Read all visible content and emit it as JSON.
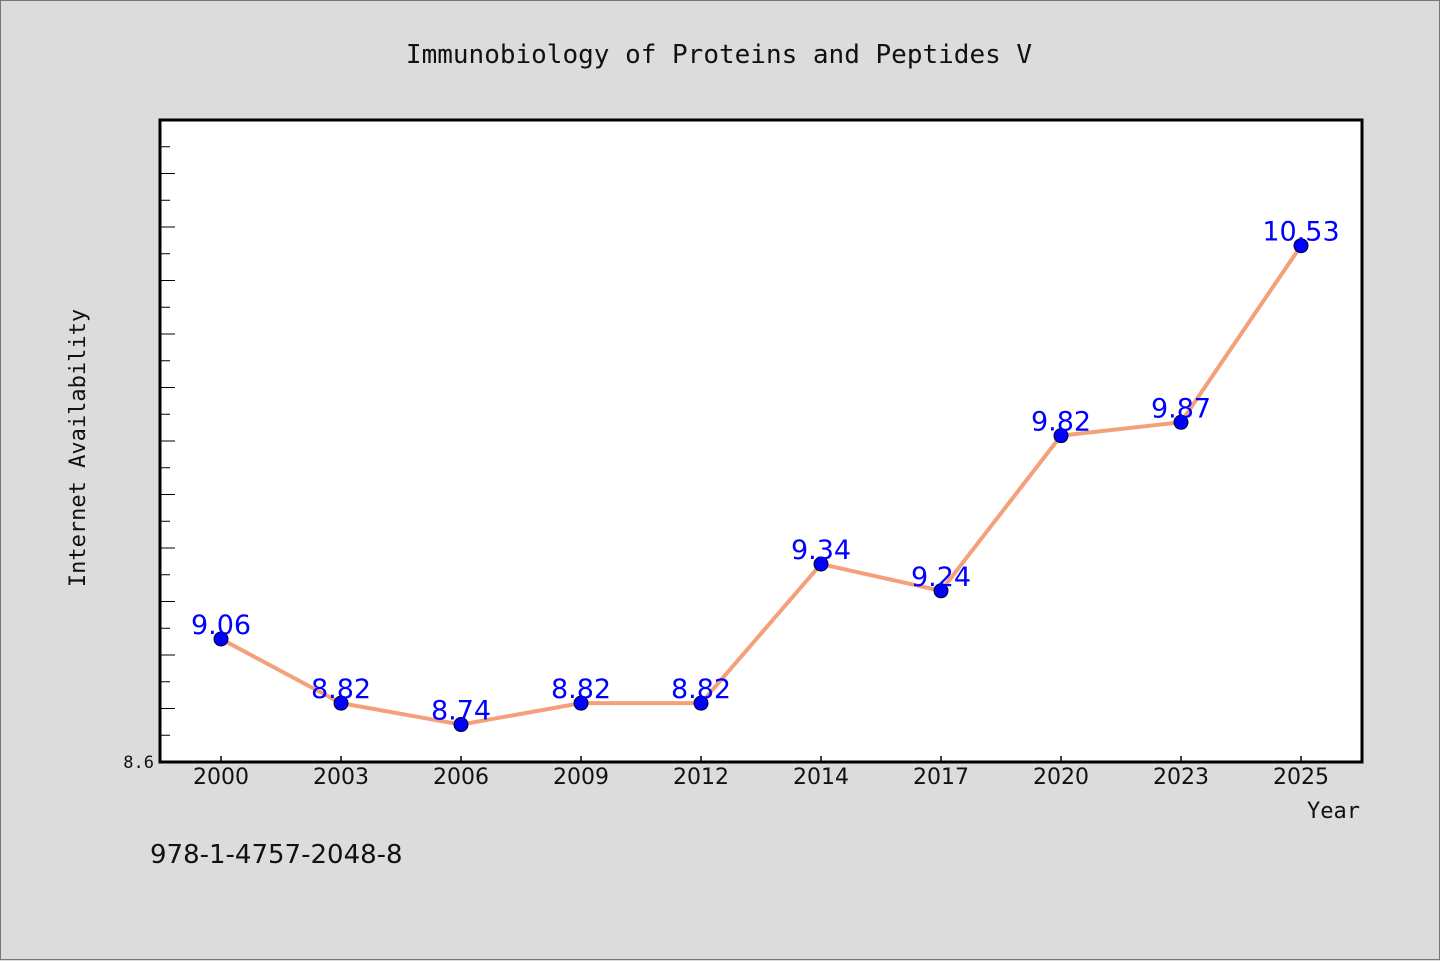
{
  "isbn": "978-1-4757-2048-8",
  "colors": {
    "background": "#dcdcdc",
    "plot_background": "#ffffff",
    "line": "#f4a07a",
    "marker": "#0000ff",
    "label": "#0000ff"
  },
  "chart_data": {
    "type": "line",
    "title": "Immunobiology of Proteins and Peptides V",
    "xlabel": "Year",
    "ylabel": "Internet Availability",
    "categories": [
      "2000",
      "2003",
      "2006",
      "2009",
      "2012",
      "2014",
      "2017",
      "2020",
      "2023",
      "2025"
    ],
    "series": [
      {
        "values": [
          9.06,
          8.82,
          8.74,
          8.82,
          8.82,
          9.34,
          9.24,
          9.82,
          9.87,
          10.53
        ]
      }
    ],
    "ylim": [
      8.6,
      11.0
    ],
    "y_tick_labels": [
      "8.6"
    ],
    "grid": false,
    "legend": "none"
  }
}
